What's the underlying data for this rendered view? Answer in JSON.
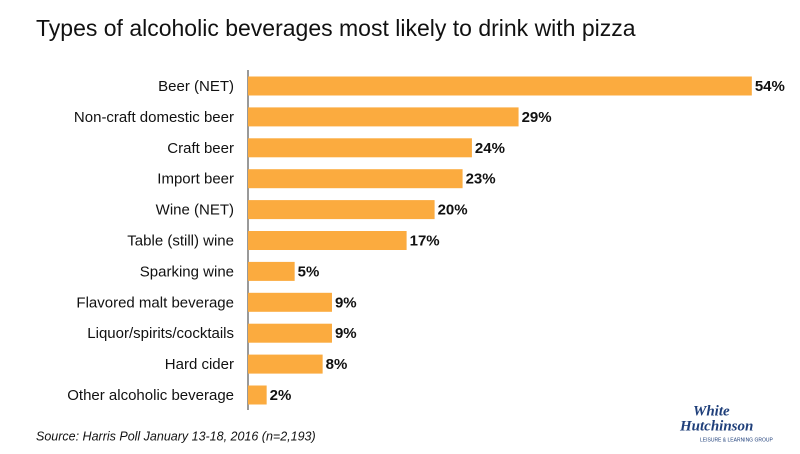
{
  "chart_data": {
    "type": "bar",
    "orientation": "horizontal",
    "title": "Types of alcoholic beverages most likely to drink with pizza",
    "categories": [
      "Beer (NET)",
      "Non-craft domestic beer",
      "Craft beer",
      "Import beer",
      "Wine (NET)",
      "Table (still) wine",
      "Sparking wine",
      "Flavored malt beverage",
      "Liquor/spirits/cocktails",
      "Hard cider",
      "Other alcoholic beverage"
    ],
    "values": [
      54,
      29,
      24,
      23,
      20,
      17,
      5,
      9,
      9,
      8,
      2
    ],
    "value_labels": [
      "54%",
      "29%",
      "24%",
      "23%",
      "20%",
      "17%",
      "5%",
      "9%",
      "9%",
      "8%",
      "2%"
    ],
    "color": "#fbab3f",
    "source": "Source: Harris Poll January 13-18, 2016 (n=2,193)"
  },
  "logo": {
    "line1": "White",
    "line2": "Hutchinson",
    "tagline": "LEISURE & LEARNING GROUP"
  }
}
